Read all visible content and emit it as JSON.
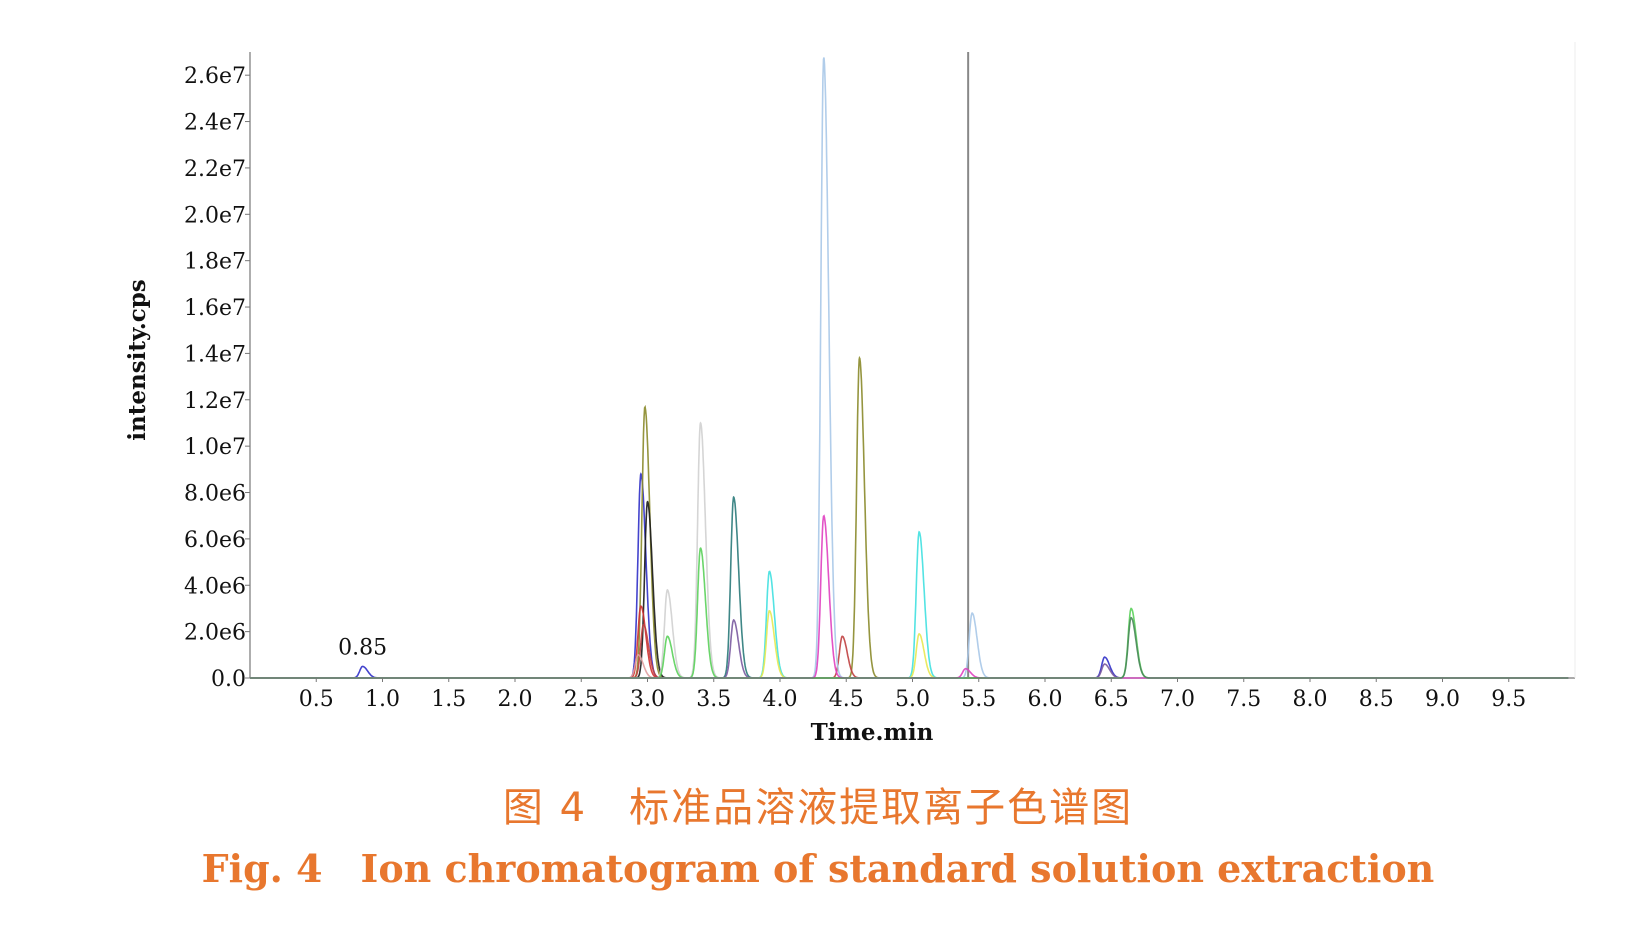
{
  "caption": {
    "cn": "图 4　标准品溶液提取离子色谱图",
    "en": "Fig. 4　Ion chromatogram of standard solution extraction"
  },
  "chart_data": {
    "type": "line",
    "xlabel": "Time.min",
    "ylabel": "intensity.cps",
    "xlim": [
      0,
      10
    ],
    "ylim": [
      0,
      27000000.0
    ],
    "x_ticks": [
      "0.5",
      "1.0",
      "1.5",
      "2.0",
      "2.5",
      "3.0",
      "3.5",
      "4.0",
      "4.5",
      "5.0",
      "5.5",
      "6.0",
      "6.5",
      "7.0",
      "7.5",
      "8.0",
      "8.5",
      "9.0",
      "9.5"
    ],
    "y_ticks": [
      "0.0",
      "2.0e6",
      "4.0e6",
      "6.0e6",
      "8.0e6",
      "1.0e7",
      "1.2e7",
      "1.4e7",
      "1.6e7",
      "1.8e7",
      "2.0e7",
      "2.2e7",
      "2.4e7",
      "2.6e7"
    ],
    "grid": false,
    "annotations": [
      {
        "text": "0.85",
        "x": 0.85,
        "y": 500000.0
      }
    ],
    "vertical_marker": {
      "x": 5.42,
      "color": "#888888"
    },
    "series": [
      {
        "color": "#3030c8",
        "peaks": [
          [
            0.85,
            500000.0
          ],
          [
            2.95,
            8800000.0
          ],
          [
            6.45,
            900000.0
          ]
        ]
      },
      {
        "color": "#8a8a2a",
        "peaks": [
          [
            2.98,
            11700000.0
          ],
          [
            4.6,
            13800000.0
          ]
        ]
      },
      {
        "color": "#1a1a1a",
        "peaks": [
          [
            3.0,
            7600000.0
          ]
        ]
      },
      {
        "color": "#d03030",
        "peaks": [
          [
            2.95,
            3100000.0
          ]
        ]
      },
      {
        "color": "#c04040",
        "peaks": [
          [
            2.97,
            2300000.0
          ],
          [
            4.47,
            1800000.0
          ]
        ]
      },
      {
        "color": "#e0a0a0",
        "peaks": [
          [
            2.93,
            1000000.0
          ]
        ]
      },
      {
        "color": "#d0d0d0",
        "peaks": [
          [
            3.15,
            3800000.0
          ],
          [
            3.4,
            11000000.0
          ]
        ]
      },
      {
        "color": "#5ad05a",
        "peaks": [
          [
            3.15,
            1800000.0
          ],
          [
            3.4,
            5600000.0
          ],
          [
            6.65,
            3000000.0
          ]
        ]
      },
      {
        "color": "#2a7a7a",
        "peaks": [
          [
            3.65,
            7800000.0
          ]
        ]
      },
      {
        "color": "#7a5aa0",
        "peaks": [
          [
            3.65,
            2500000.0
          ],
          [
            6.45,
            600000.0
          ]
        ]
      },
      {
        "color": "#40e0e0",
        "peaks": [
          [
            3.92,
            4600000.0
          ],
          [
            5.05,
            6300000.0
          ]
        ]
      },
      {
        "color": "#e8e850",
        "peaks": [
          [
            3.92,
            2900000.0
          ],
          [
            5.05,
            1900000.0
          ]
        ]
      },
      {
        "color": "#a8c8e8",
        "peaks": [
          [
            4.33,
            26800000.0
          ],
          [
            5.45,
            2800000.0
          ]
        ]
      },
      {
        "color": "#e040c0",
        "peaks": [
          [
            4.33,
            7000000.0
          ],
          [
            5.4,
            400000.0
          ]
        ]
      },
      {
        "color": "#4a8a5a",
        "peaks": [
          [
            6.65,
            2600000.0
          ]
        ]
      }
    ]
  }
}
